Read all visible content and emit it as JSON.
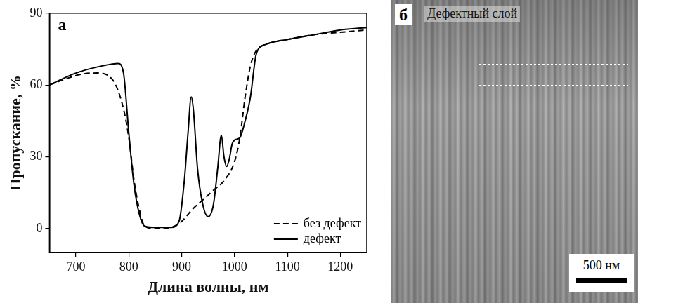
{
  "chart_data": {
    "type": "line",
    "panel_label": "а",
    "x_label": "Длина волны, нм",
    "y_label": "Пропускание, %",
    "xlim": [
      650,
      1250
    ],
    "xticks": [
      700,
      800,
      900,
      1000,
      1100,
      1200
    ],
    "ylim": [
      -10,
      90
    ],
    "yticks": [
      0,
      30,
      60,
      90
    ],
    "grid": false,
    "legend": "lower right",
    "series": [
      {
        "name": "без дефект",
        "color": "#000000",
        "line_style": "dashed",
        "x": [
          650,
          680,
          710,
          740,
          770,
          790,
          800,
          810,
          820,
          830,
          850,
          880,
          900,
          920,
          940,
          960,
          980,
          1000,
          1010,
          1020,
          1030,
          1040,
          1060,
          1100,
          1150,
          1200,
          1250
        ],
        "values": [
          60,
          62.5,
          64.5,
          65,
          62,
          50,
          38,
          20,
          8,
          1,
          0,
          0.5,
          3,
          8,
          12,
          16,
          20,
          28,
          38,
          55,
          68,
          74,
          77,
          79,
          81,
          82,
          83
        ]
      },
      {
        "name": "дефект",
        "color": "#000000",
        "line_style": "solid",
        "x": [
          650,
          700,
          750,
          780,
          790,
          800,
          810,
          820,
          830,
          850,
          880,
          895,
          905,
          912,
          918,
          922,
          930,
          940,
          950,
          960,
          968,
          975,
          980,
          985,
          990,
          995,
          1000,
          1010,
          1020,
          1030,
          1040,
          1045,
          1060,
          1100,
          1150,
          1200,
          1250
        ],
        "values": [
          60,
          65,
          68,
          69,
          65,
          40,
          18,
          6,
          1,
          0.5,
          0.5,
          3,
          20,
          40,
          55,
          50,
          25,
          10,
          5,
          10,
          25,
          39,
          30,
          26,
          29,
          35,
          37,
          38,
          45,
          55,
          72,
          75,
          77,
          79,
          81,
          83,
          84
        ]
      }
    ]
  },
  "image_panel": {
    "panel_label": "б",
    "annotation": "Дефектный слой",
    "scale_bar": "500 нм"
  }
}
